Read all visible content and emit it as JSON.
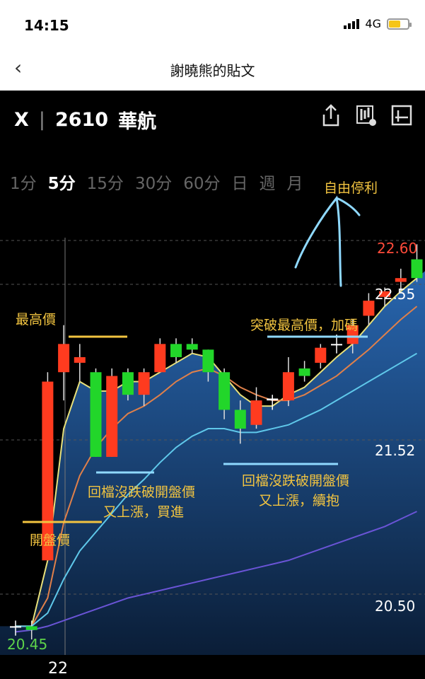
{
  "status": {
    "time": "14:15",
    "network": "4G"
  },
  "header": {
    "title": "謝曉熊的貼文"
  },
  "stock": {
    "close_symbol": "X",
    "code": "2610",
    "name": "華航"
  },
  "periods": [
    "1分",
    "5分",
    "15分",
    "30分",
    "60分",
    "日",
    "週",
    "月"
  ],
  "active_period": "5分",
  "annotations": {
    "take_profit": "自由停利",
    "highest": "最高價",
    "breakout": "突破最高價，加碼",
    "pullback1_line1": "回檔沒跌破開盤價",
    "pullback1_line2": "又上漲，買進",
    "pullback2_line1": "回檔沒跌破開盤價",
    "pullback2_line2": "又上漲，續抱",
    "open_price": "開盤價"
  },
  "price_labels": {
    "top": "22.60",
    "second": "22.55",
    "mid": "21.52",
    "lower": "20.50",
    "low": "20.45"
  },
  "x_label": "22",
  "colors": {
    "up": "#ff3b1f",
    "down": "#22d62a",
    "yellow": "#f2c440",
    "cyan": "#8fd9ff",
    "ma_yellow": "#e8e07a",
    "ma_orange": "#e0804a",
    "ma_cyan": "#5fc8ea",
    "ma_purple": "#6a54d6",
    "area": "#1f5aa0"
  },
  "chart_data": {
    "type": "candlestick",
    "ylim": [
      20.45,
      22.6
    ],
    "candles": [
      {
        "o": 20.55,
        "h": 20.58,
        "l": 20.5,
        "c": 20.55
      },
      {
        "o": 20.55,
        "h": 20.58,
        "l": 20.48,
        "c": 20.53
      },
      {
        "o": 20.9,
        "h": 21.9,
        "l": 20.9,
        "c": 21.85
      },
      {
        "o": 21.9,
        "h": 22.15,
        "l": 21.75,
        "c": 22.05
      },
      {
        "o": 21.95,
        "h": 22.05,
        "l": 21.85,
        "c": 21.98
      },
      {
        "o": 21.9,
        "h": 21.92,
        "l": 21.45,
        "c": 21.45
      },
      {
        "o": 21.45,
        "h": 21.92,
        "l": 21.45,
        "c": 21.88
      },
      {
        "o": 21.9,
        "h": 21.92,
        "l": 21.75,
        "c": 21.78
      },
      {
        "o": 21.78,
        "h": 21.92,
        "l": 21.72,
        "c": 21.9
      },
      {
        "o": 21.9,
        "h": 22.08,
        "l": 21.9,
        "c": 22.05
      },
      {
        "o": 22.05,
        "h": 22.08,
        "l": 21.95,
        "c": 21.98
      },
      {
        "o": 22.05,
        "h": 22.08,
        "l": 22.0,
        "c": 22.02
      },
      {
        "o": 22.02,
        "h": 22.02,
        "l": 21.85,
        "c": 21.9
      },
      {
        "o": 21.9,
        "h": 21.92,
        "l": 21.65,
        "c": 21.7
      },
      {
        "o": 21.7,
        "h": 21.75,
        "l": 21.52,
        "c": 21.6
      },
      {
        "o": 21.62,
        "h": 21.82,
        "l": 21.6,
        "c": 21.75
      },
      {
        "o": 21.75,
        "h": 21.78,
        "l": 21.7,
        "c": 21.76
      },
      {
        "o": 21.75,
        "h": 21.98,
        "l": 21.72,
        "c": 21.9
      },
      {
        "o": 21.92,
        "h": 21.96,
        "l": 21.85,
        "c": 21.88
      },
      {
        "o": 21.95,
        "h": 22.05,
        "l": 21.92,
        "c": 22.03
      },
      {
        "o": 22.05,
        "h": 22.1,
        "l": 22.0,
        "c": 22.05
      },
      {
        "o": 22.05,
        "h": 22.18,
        "l": 22.0,
        "c": 22.15
      },
      {
        "o": 22.2,
        "h": 22.32,
        "l": 22.15,
        "c": 22.28
      },
      {
        "o": 22.3,
        "h": 22.35,
        "l": 22.25,
        "c": 22.33
      },
      {
        "o": 22.38,
        "h": 22.45,
        "l": 22.33,
        "c": 22.4
      },
      {
        "o": 22.5,
        "h": 22.58,
        "l": 22.38,
        "c": 22.4
      }
    ],
    "ma": [
      {
        "color": "ma_yellow",
        "values": [
          20.55,
          20.55,
          20.9,
          21.6,
          21.85,
          21.8,
          21.8,
          21.85,
          21.85,
          21.9,
          21.95,
          22.0,
          21.98,
          21.88,
          21.78,
          21.72,
          21.72,
          21.78,
          21.82,
          21.9,
          21.98,
          22.05,
          22.15,
          22.25,
          22.33,
          22.4
        ]
      },
      {
        "color": "ma_orange",
        "values": [
          20.55,
          20.55,
          20.7,
          21.1,
          21.35,
          21.5,
          21.6,
          21.68,
          21.72,
          21.78,
          21.85,
          21.9,
          21.92,
          21.88,
          21.82,
          21.78,
          21.75,
          21.75,
          21.78,
          21.83,
          21.88,
          21.95,
          22.02,
          22.1,
          22.18,
          22.25
        ]
      },
      {
        "color": "ma_cyan",
        "values": [
          20.55,
          20.55,
          20.62,
          20.8,
          20.95,
          21.05,
          21.15,
          21.25,
          21.33,
          21.42,
          21.5,
          21.56,
          21.6,
          21.6,
          21.58,
          21.58,
          21.6,
          21.62,
          21.66,
          21.7,
          21.75,
          21.8,
          21.85,
          21.9,
          21.95,
          22.0
        ]
      },
      {
        "color": "ma_purple",
        "values": [
          20.52,
          20.53,
          20.55,
          20.58,
          20.61,
          20.64,
          20.67,
          20.7,
          20.72,
          20.74,
          20.76,
          20.78,
          20.8,
          20.82,
          20.84,
          20.86,
          20.88,
          20.9,
          20.93,
          20.96,
          20.99,
          21.02,
          21.05,
          21.08,
          21.12,
          21.16
        ]
      }
    ]
  }
}
